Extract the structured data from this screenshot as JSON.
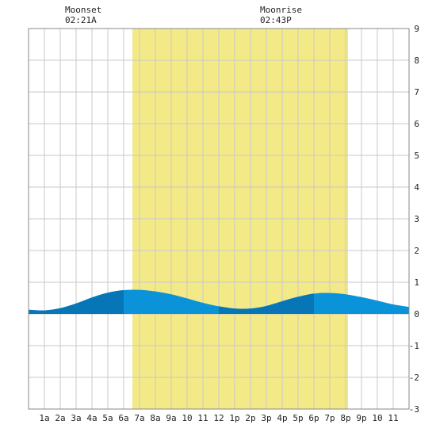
{
  "moon": {
    "moonset_label": "Moonset",
    "moonset_time": "02:21A",
    "moonrise_label": "Moonrise",
    "moonrise_time": "02:43P"
  },
  "colors": {
    "daylight": "#f3ea87",
    "tide_light": "#0a93d8",
    "tide_dark": "#0676b6",
    "grid": "#c8c8c8",
    "border": "#888888"
  },
  "chart_data": {
    "type": "area",
    "title": "",
    "xlabel": "",
    "ylabel": "",
    "xlim": [
      0,
      24
    ],
    "ylim": [
      -3,
      9
    ],
    "grid": true,
    "x_tick_labels": [
      "1a",
      "2a",
      "3a",
      "4a",
      "5a",
      "6a",
      "7a",
      "8a",
      "9a",
      "10",
      "11",
      "12",
      "1p",
      "2p",
      "3p",
      "4p",
      "5p",
      "6p",
      "7p",
      "8p",
      "9p",
      "10",
      "11"
    ],
    "y_ticks": [
      -3,
      -2,
      -1,
      0,
      1,
      2,
      3,
      4,
      5,
      6,
      7,
      8,
      9
    ],
    "daylight": {
      "start_hour": 6.55,
      "end_hour": 20.15
    },
    "series": [
      {
        "x": [
          0,
          1,
          2,
          3,
          4,
          5,
          6,
          7,
          8,
          9,
          10,
          11,
          12,
          13,
          14,
          15,
          16,
          17,
          18,
          19,
          20,
          21,
          22,
          23,
          24
        ],
        "values": [
          0.13,
          0.11,
          0.18,
          0.33,
          0.52,
          0.67,
          0.75,
          0.76,
          0.71,
          0.62,
          0.49,
          0.35,
          0.24,
          0.17,
          0.17,
          0.25,
          0.4,
          0.54,
          0.64,
          0.66,
          0.62,
          0.53,
          0.42,
          0.3,
          0.22
        ]
      }
    ],
    "dark_bands": [
      [
        0,
        6
      ],
      [
        12,
        18
      ]
    ]
  }
}
